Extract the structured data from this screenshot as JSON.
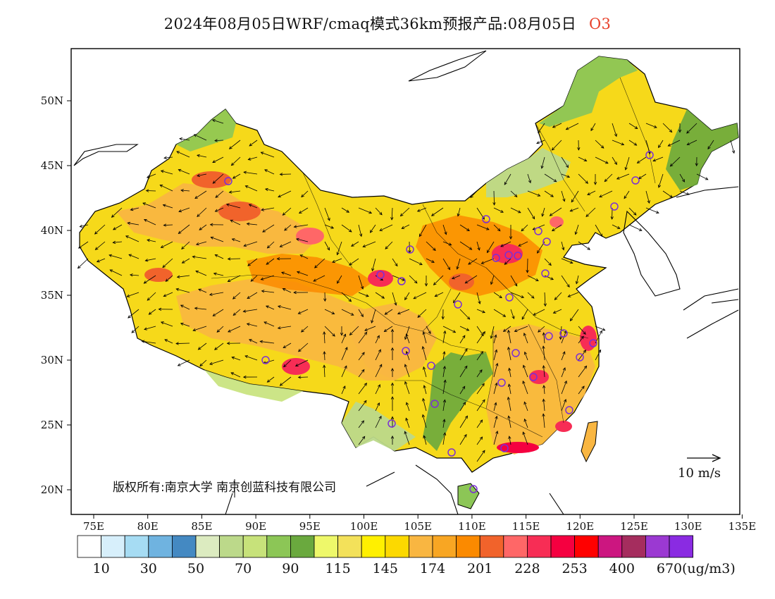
{
  "title": {
    "text": "2024年08月05日WRF/cmaq模式36km预报产品:08月05日",
    "species": "O3"
  },
  "map": {
    "lat_ticks": [
      "50N",
      "45N",
      "40N",
      "35N",
      "30N",
      "25N",
      "20N"
    ],
    "lon_ticks": [
      "75E",
      "80E",
      "85E",
      "90E",
      "95E",
      "100E",
      "105E",
      "110E",
      "115E",
      "120E",
      "125E",
      "130E",
      "135E"
    ],
    "copyright": "版权所有:南京大学 南京创蓝科技有限公司",
    "wind_reference": "10 m/s",
    "colors": {
      "land_outline": "#000000",
      "background": "#ffffff",
      "station_marker": "#7b2fd6"
    }
  },
  "colorbar": {
    "colors": [
      "#ffffff",
      "#d7effb",
      "#a6dcf3",
      "#6fb3e0",
      "#4489c2",
      "#dcebc0",
      "#bcd98a",
      "#c7e27a",
      "#8cc656",
      "#6aa93e",
      "#eef86a",
      "#f3e15a",
      "#fff000",
      "#fcd900",
      "#f9b641",
      "#f8a623",
      "#fb8a00",
      "#f1632b",
      "#ff6767",
      "#f72d55",
      "#f50040",
      "#ff0000",
      "#cc1680",
      "#a52d5e",
      "#9b39d2",
      "#8a2be2"
    ],
    "labels": [
      "10",
      "30",
      "50",
      "70",
      "90",
      "115",
      "145",
      "174",
      "201",
      "228",
      "253",
      "400",
      "670"
    ],
    "unit": "(ug/m3)"
  }
}
